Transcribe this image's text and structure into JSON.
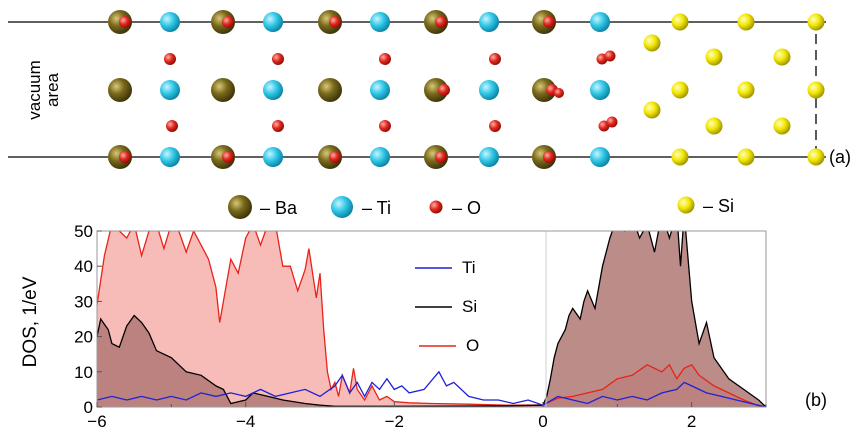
{
  "panel_a": {
    "side_label_line1": "vacuum",
    "side_label_line2": "area",
    "panel_tag": "(a)",
    "legend": [
      {
        "symbol": "Ba",
        "text": "– Ba",
        "color": "#7a6a1c"
      },
      {
        "symbol": "Ti",
        "text": "– Ti",
        "color": "#2fc6e6"
      },
      {
        "symbol": "O",
        "text": "– O",
        "color": "#e0281e"
      },
      {
        "symbol": "Si",
        "text": "– Si",
        "color": "#f2e600"
      }
    ]
  },
  "panel_b": {
    "panel_tag": "(b)",
    "ylabel": "DOS, 1/eV",
    "x_ticks": [
      "−6",
      "−4",
      "−2",
      "0",
      "2"
    ],
    "y_ticks": [
      "0",
      "10",
      "20",
      "30",
      "40",
      "50"
    ],
    "legend": [
      {
        "name": "Ti",
        "color": "#1f22d6"
      },
      {
        "name": "Si",
        "color": "#000000"
      },
      {
        "name": "O",
        "color": "#e8231c"
      }
    ]
  },
  "chart_data": {
    "type": "area",
    "xlim": [
      -6,
      3
    ],
    "ylim": [
      0,
      50
    ],
    "xlabel": "",
    "ylabel": "DOS, 1/eV",
    "grid": false,
    "reference_line_x": 0,
    "legend_placement": "center",
    "series": [
      {
        "name": "O",
        "color": "#e8231c",
        "fill": "#f8b8b4",
        "points": [
          [
            -6,
            29
          ],
          [
            -5.9,
            43
          ],
          [
            -5.8,
            52
          ],
          [
            -5.7,
            50
          ],
          [
            -5.6,
            48
          ],
          [
            -5.5,
            52
          ],
          [
            -5.4,
            43
          ],
          [
            -5.3,
            50
          ],
          [
            -5.2,
            52
          ],
          [
            -5.1,
            45
          ],
          [
            -5.0,
            52
          ],
          [
            -4.9,
            50
          ],
          [
            -4.8,
            44
          ],
          [
            -4.7,
            50
          ],
          [
            -4.6,
            46
          ],
          [
            -4.5,
            42
          ],
          [
            -4.4,
            34
          ],
          [
            -4.35,
            24
          ],
          [
            -4.3,
            30
          ],
          [
            -4.2,
            42
          ],
          [
            -4.1,
            38
          ],
          [
            -4.0,
            48
          ],
          [
            -3.9,
            52
          ],
          [
            -3.8,
            46
          ],
          [
            -3.7,
            52
          ],
          [
            -3.6,
            52
          ],
          [
            -3.5,
            40
          ],
          [
            -3.4,
            40
          ],
          [
            -3.3,
            33
          ],
          [
            -3.2,
            39
          ],
          [
            -3.15,
            45
          ],
          [
            -3.05,
            31
          ],
          [
            -3.0,
            38
          ],
          [
            -2.95,
            22
          ],
          [
            -2.9,
            10
          ],
          [
            -2.85,
            5
          ],
          [
            -2.8,
            7
          ],
          [
            -2.75,
            3
          ],
          [
            -2.7,
            9
          ],
          [
            -2.6,
            4
          ],
          [
            -2.55,
            11
          ],
          [
            -2.5,
            5
          ],
          [
            -2.4,
            2
          ],
          [
            -2.3,
            6
          ],
          [
            -2.2,
            2
          ],
          [
            -2.1,
            3
          ],
          [
            -2.0,
            1.5
          ],
          [
            -1.8,
            1.2
          ],
          [
            -1.5,
            1
          ],
          [
            -1.0,
            0.8
          ],
          [
            -0.5,
            0.5
          ],
          [
            0,
            0.6
          ],
          [
            0.2,
            2.5
          ],
          [
            0.4,
            3
          ],
          [
            0.6,
            4
          ],
          [
            0.8,
            5
          ],
          [
            1.0,
            8
          ],
          [
            1.2,
            9
          ],
          [
            1.4,
            12
          ],
          [
            1.6,
            10
          ],
          [
            1.7,
            12
          ],
          [
            1.8,
            8
          ],
          [
            1.9,
            11
          ],
          [
            2.0,
            12
          ],
          [
            2.1,
            9
          ],
          [
            2.3,
            6
          ],
          [
            2.5,
            4
          ],
          [
            2.7,
            2
          ],
          [
            2.9,
            0.3
          ],
          [
            3,
            0
          ]
        ]
      },
      {
        "name": "Si",
        "color": "#000000",
        "fill": "#cccccc",
        "points": [
          [
            -6,
            20
          ],
          [
            -5.95,
            25
          ],
          [
            -5.85,
            22
          ],
          [
            -5.8,
            18
          ],
          [
            -5.7,
            17
          ],
          [
            -5.6,
            23
          ],
          [
            -5.5,
            26
          ],
          [
            -5.4,
            24
          ],
          [
            -5.3,
            21
          ],
          [
            -5.2,
            16
          ],
          [
            -5.0,
            14
          ],
          [
            -4.8,
            10
          ],
          [
            -4.6,
            9
          ],
          [
            -4.4,
            6
          ],
          [
            -4.3,
            5
          ],
          [
            -4.2,
            1
          ],
          [
            -4.0,
            2
          ],
          [
            -3.9,
            4
          ],
          [
            -3.7,
            3
          ],
          [
            -3.5,
            2
          ],
          [
            -3.2,
            1
          ],
          [
            -3.0,
            0.5
          ],
          [
            -2.8,
            0.2
          ],
          [
            -2.0,
            0.2
          ],
          [
            -0.5,
            0.3
          ],
          [
            0,
            0.5
          ],
          [
            0.05,
            3
          ],
          [
            0.1,
            8
          ],
          [
            0.15,
            14
          ],
          [
            0.2,
            18
          ],
          [
            0.3,
            22
          ],
          [
            0.35,
            26
          ],
          [
            0.4,
            28
          ],
          [
            0.5,
            25
          ],
          [
            0.55,
            30
          ],
          [
            0.6,
            33
          ],
          [
            0.7,
            28
          ],
          [
            0.8,
            40
          ],
          [
            0.9,
            48
          ],
          [
            1.0,
            54
          ],
          [
            1.1,
            50
          ],
          [
            1.2,
            54
          ],
          [
            1.3,
            48
          ],
          [
            1.4,
            52
          ],
          [
            1.5,
            44
          ],
          [
            1.6,
            55
          ],
          [
            1.7,
            48
          ],
          [
            1.8,
            55
          ],
          [
            1.85,
            40
          ],
          [
            1.9,
            55
          ],
          [
            2.0,
            30
          ],
          [
            2.1,
            18
          ],
          [
            2.2,
            24
          ],
          [
            2.3,
            14
          ],
          [
            2.5,
            8
          ],
          [
            2.7,
            5
          ],
          [
            2.9,
            2
          ],
          [
            3,
            0
          ]
        ]
      },
      {
        "name": "Ti",
        "color": "#1f22d6",
        "fill": "none",
        "points": [
          [
            -6,
            2
          ],
          [
            -5.8,
            3
          ],
          [
            -5.6,
            2
          ],
          [
            -5.4,
            3
          ],
          [
            -5.2,
            2
          ],
          [
            -5.0,
            3
          ],
          [
            -4.8,
            2
          ],
          [
            -4.6,
            4
          ],
          [
            -4.4,
            3
          ],
          [
            -4.2,
            4
          ],
          [
            -4.0,
            3
          ],
          [
            -3.8,
            5
          ],
          [
            -3.6,
            3
          ],
          [
            -3.4,
            4
          ],
          [
            -3.2,
            5
          ],
          [
            -3.0,
            3
          ],
          [
            -2.8,
            6
          ],
          [
            -2.7,
            9
          ],
          [
            -2.6,
            4
          ],
          [
            -2.5,
            7
          ],
          [
            -2.4,
            3
          ],
          [
            -2.3,
            7
          ],
          [
            -2.2,
            5
          ],
          [
            -2.1,
            8
          ],
          [
            -2.0,
            5
          ],
          [
            -1.9,
            6
          ],
          [
            -1.8,
            4
          ],
          [
            -1.6,
            5
          ],
          [
            -1.4,
            10
          ],
          [
            -1.3,
            6
          ],
          [
            -1.2,
            7
          ],
          [
            -1.0,
            3
          ],
          [
            -0.8,
            2
          ],
          [
            -0.6,
            2
          ],
          [
            -0.4,
            1
          ],
          [
            -0.2,
            2
          ],
          [
            0,
            0.5
          ],
          [
            0.2,
            3
          ],
          [
            0.4,
            2
          ],
          [
            0.6,
            1
          ],
          [
            0.8,
            3
          ],
          [
            1.0,
            2
          ],
          [
            1.2,
            3
          ],
          [
            1.4,
            2
          ],
          [
            1.6,
            4
          ],
          [
            1.8,
            5
          ],
          [
            1.9,
            7
          ],
          [
            2.0,
            6
          ],
          [
            2.2,
            4
          ],
          [
            2.4,
            3
          ],
          [
            2.6,
            2
          ],
          [
            2.8,
            1
          ],
          [
            3,
            0
          ]
        ]
      }
    ]
  }
}
